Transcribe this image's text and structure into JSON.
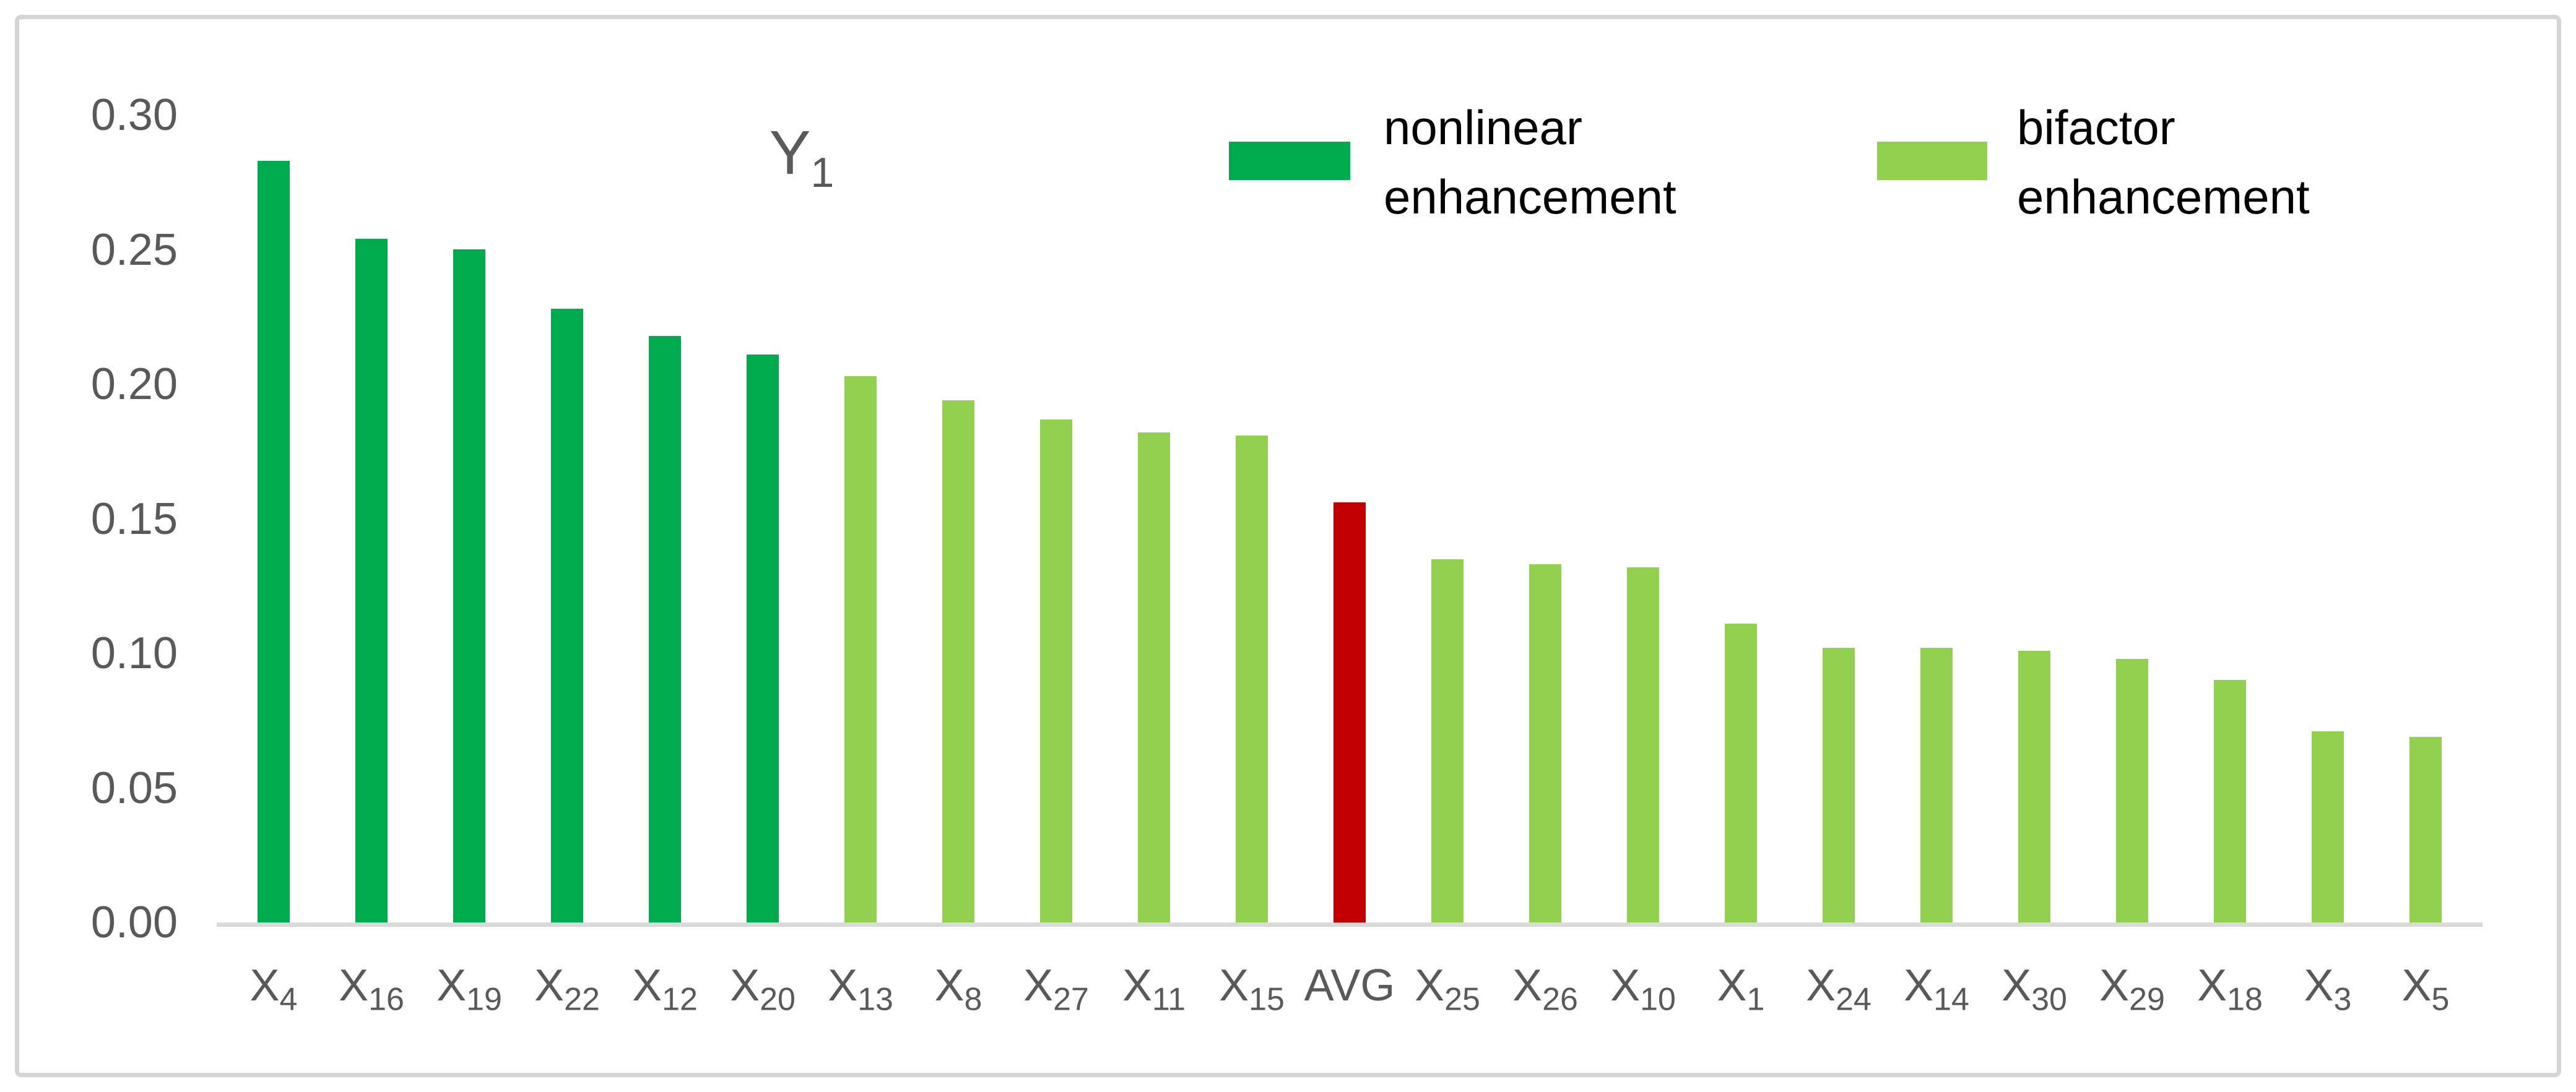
{
  "title": {
    "base": "Y",
    "subscript": "1",
    "color": "#595959"
  },
  "legend": [
    {
      "series": "nonlinear enhancement",
      "label_line1": "nonlinear",
      "label_line2": "enhancement",
      "color": "#00ab50"
    },
    {
      "series": "bifactor enhancement",
      "label_line1": "bifactor",
      "label_line2": "enhancement",
      "color": "#92d050"
    }
  ],
  "colors": {
    "nonlinear": "#00ab50",
    "bifactor": "#92d050",
    "avg": "#c00000",
    "axis_line": "#d9d9d9",
    "label_text": "#595959",
    "legend_text": "#000000",
    "figure_border": "#d5d5d5"
  },
  "chart_data": {
    "type": "bar",
    "title": "Y1",
    "xlabel": "",
    "ylabel": "",
    "ylim": [
      0,
      0.3
    ],
    "grid": false,
    "legend_position": "top",
    "yticks": [
      {
        "label": "0.30",
        "value": 0.3
      },
      {
        "label": "0.25",
        "value": 0.25
      },
      {
        "label": "0.20",
        "value": 0.2
      },
      {
        "label": "0.15",
        "value": 0.15
      },
      {
        "label": "0.10",
        "value": 0.1
      },
      {
        "label": "0.05",
        "value": 0.05
      },
      {
        "label": "0.00",
        "value": 0.0
      }
    ],
    "bars": [
      {
        "label_base": "X",
        "label_sub": "4",
        "value": 0.283,
        "group": "nonlinear"
      },
      {
        "label_base": "X",
        "label_sub": "16",
        "value": 0.254,
        "group": "nonlinear"
      },
      {
        "label_base": "X",
        "label_sub": "19",
        "value": 0.25,
        "group": "nonlinear"
      },
      {
        "label_base": "X",
        "label_sub": "22",
        "value": 0.228,
        "group": "nonlinear"
      },
      {
        "label_base": "X",
        "label_sub": "12",
        "value": 0.218,
        "group": "nonlinear"
      },
      {
        "label_base": "X",
        "label_sub": "20",
        "value": 0.211,
        "group": "nonlinear"
      },
      {
        "label_base": "X",
        "label_sub": "13",
        "value": 0.203,
        "group": "bifactor"
      },
      {
        "label_base": "X",
        "label_sub": "8",
        "value": 0.194,
        "group": "bifactor"
      },
      {
        "label_base": "X",
        "label_sub": "27",
        "value": 0.187,
        "group": "bifactor"
      },
      {
        "label_base": "X",
        "label_sub": "11",
        "value": 0.182,
        "group": "bifactor"
      },
      {
        "label_base": "X",
        "label_sub": "15",
        "value": 0.181,
        "group": "bifactor"
      },
      {
        "label_base": "AVG",
        "label_sub": "",
        "value": 0.156,
        "group": "avg"
      },
      {
        "label_base": "X",
        "label_sub": "25",
        "value": 0.135,
        "group": "bifactor"
      },
      {
        "label_base": "X",
        "label_sub": "26",
        "value": 0.133,
        "group": "bifactor"
      },
      {
        "label_base": "X",
        "label_sub": "10",
        "value": 0.132,
        "group": "bifactor"
      },
      {
        "label_base": "X",
        "label_sub": "1",
        "value": 0.111,
        "group": "bifactor"
      },
      {
        "label_base": "X",
        "label_sub": "24",
        "value": 0.102,
        "group": "bifactor"
      },
      {
        "label_base": "X",
        "label_sub": "14",
        "value": 0.102,
        "group": "bifactor"
      },
      {
        "label_base": "X",
        "label_sub": "30",
        "value": 0.101,
        "group": "bifactor"
      },
      {
        "label_base": "X",
        "label_sub": "29",
        "value": 0.098,
        "group": "bifactor"
      },
      {
        "label_base": "X",
        "label_sub": "18",
        "value": 0.09,
        "group": "bifactor"
      },
      {
        "label_base": "X",
        "label_sub": "3",
        "value": 0.071,
        "group": "bifactor"
      },
      {
        "label_base": "X",
        "label_sub": "5",
        "value": 0.069,
        "group": "bifactor"
      }
    ]
  }
}
